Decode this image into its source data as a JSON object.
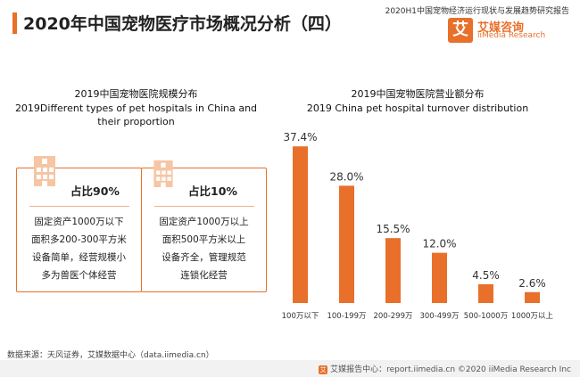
{
  "header": {
    "title": "2020年中国宠物医疗市场概况分析（四）",
    "report_name": "2020H1中国宠物经济运行现状与发展趋势研究报告"
  },
  "logo": {
    "badge": "艾",
    "name_cn": "艾媒咨询",
    "name_en": "iiMedia Research"
  },
  "left_panel": {
    "title_cn": "2019中国宠物医院规模分布",
    "title_en_line1": "2019Different types of pet hospitals in China and",
    "title_en_line2": "their proportion",
    "cards": [
      {
        "icon": "hospital-building-icon",
        "ratio": "占比90%",
        "desc": [
          "固定资产1000万以下",
          "面积多200-300平方米",
          "设备简单，经营规模小",
          "多为兽医个体经营"
        ]
      },
      {
        "icon": "hospital-building-icon",
        "ratio": "占比10%",
        "desc": [
          "固定资产1000万以上",
          "面积500平方米以上",
          "设备齐全，管理规范",
          "连锁化经营"
        ]
      }
    ]
  },
  "right_panel": {
    "title_cn": "2019中国宠物医院营业额分布",
    "title_en": "2019 China pet  hospital turnover distribution"
  },
  "chart_data": {
    "type": "bar",
    "title": "2019中国宠物医院营业额分布",
    "subtitle": "2019 China pet  hospital turnover distribution",
    "categories": [
      "100万以下",
      "100-199万",
      "200-299万",
      "300-499万",
      "500-1000万",
      "1000万以上"
    ],
    "values": [
      37.4,
      28.0,
      15.5,
      12.0,
      4.5,
      2.6
    ],
    "data_labels": [
      "37.4%",
      "28.0%",
      "15.5%",
      "12.0%",
      "4.5%",
      "2.6%"
    ],
    "ylim": [
      0,
      40
    ],
    "grid": false,
    "bar_color": "#e8702a"
  },
  "source": "数据来源：天风证券，艾媒数据中心（data.iimedia.cn）",
  "footer": {
    "icon": "艾",
    "text": "艾媒报告中心：report.iimedia.cn   ©2020  iiMedia Research  Inc"
  },
  "colors": {
    "accent": "#e8702a",
    "light_accent": "#f0b48c"
  }
}
